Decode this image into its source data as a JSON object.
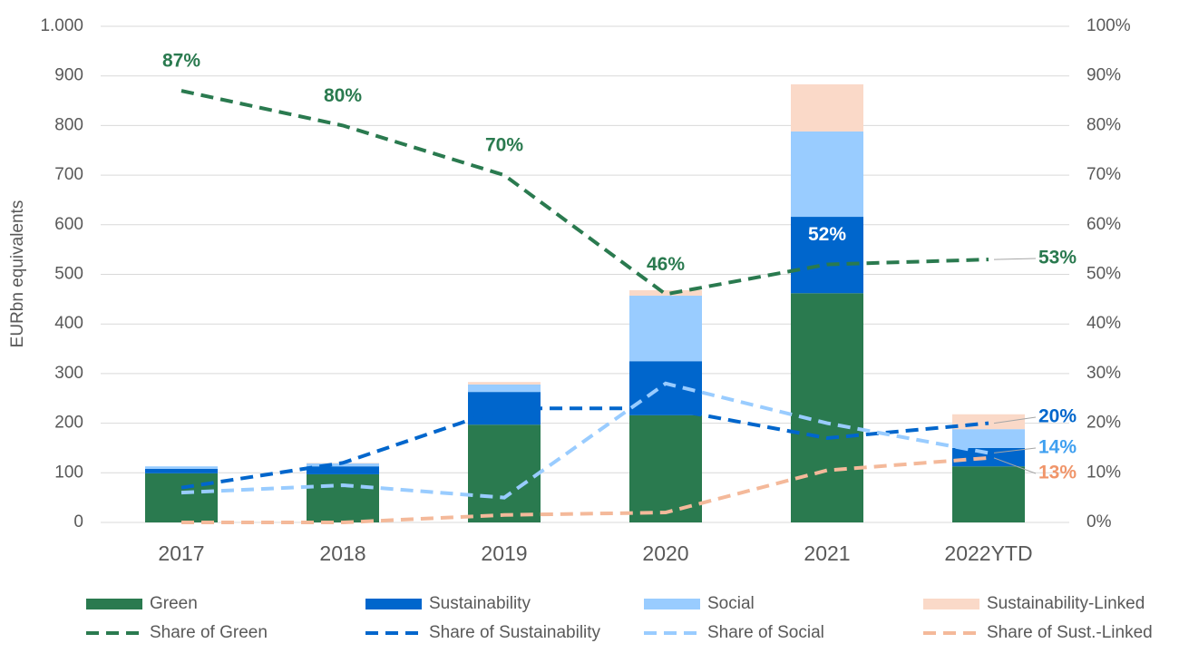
{
  "chart_data": {
    "type": "bar",
    "y_label": "EURbn equivalents",
    "categories": [
      "2017",
      "2018",
      "2019",
      "2020",
      "2021",
      "2022YTD"
    ],
    "ylim": [
      0,
      1000
    ],
    "yticks": [
      0,
      100,
      200,
      300,
      400,
      500,
      600,
      700,
      800,
      900,
      {
        "value": 1000,
        "label": "1.000"
      }
    ],
    "y2lim": [
      0,
      100
    ],
    "y2ticks": [
      {
        "value": 0,
        "label": "0%"
      },
      {
        "value": 10,
        "label": "10%"
      },
      {
        "value": 20,
        "label": "20%"
      },
      {
        "value": 30,
        "label": "30%"
      },
      {
        "value": 40,
        "label": "40%"
      },
      {
        "value": 50,
        "label": "50%"
      },
      {
        "value": 60,
        "label": "60%"
      },
      {
        "value": 70,
        "label": "70%"
      },
      {
        "value": 80,
        "label": "80%"
      },
      {
        "value": 90,
        "label": "90%"
      },
      {
        "value": 100,
        "label": "100%"
      }
    ],
    "grid": true,
    "stacked": true,
    "series": [
      {
        "name": "Green",
        "type": "bar",
        "color": "#2a7a4f",
        "values": [
          99,
          97,
          197,
          216,
          462,
          113
        ]
      },
      {
        "name": "Sustainability",
        "type": "bar",
        "color": "#0066cc",
        "values": [
          9,
          16,
          66,
          109,
          154,
          37
        ]
      },
      {
        "name": "Social",
        "type": "bar",
        "color": "#99ccff",
        "values": [
          5,
          6,
          15,
          132,
          172,
          38
        ]
      },
      {
        "name": "Sustainability-Linked",
        "type": "bar",
        "color": "#fad9c8",
        "values": [
          0,
          1,
          5,
          11,
          95,
          30
        ]
      },
      {
        "name": "Share of Green",
        "type": "line",
        "axis": "y2",
        "color": "#2a7a4f",
        "label_color": "#2a7a4f",
        "values": [
          87,
          80,
          70,
          46,
          52,
          53
        ],
        "value_labels": [
          "87%",
          "80%",
          "70%",
          "46%",
          "52%",
          "53%"
        ]
      },
      {
        "name": "Share of Sustainability",
        "type": "line",
        "axis": "y2",
        "color": "#0066cc",
        "label_color": "#0066cc",
        "values": [
          7,
          12,
          23,
          23,
          17,
          20
        ],
        "value_labels": [
          null,
          null,
          null,
          null,
          null,
          "20%"
        ]
      },
      {
        "name": "Share of Social",
        "type": "line",
        "axis": "y2",
        "color": "#99ccff",
        "label_color": "#3fa0f0",
        "values": [
          6,
          7.5,
          5,
          28,
          20,
          14
        ],
        "value_labels": [
          null,
          null,
          null,
          null,
          null,
          "14%"
        ]
      },
      {
        "name": "Share of Sust.-Linked",
        "type": "line",
        "axis": "y2",
        "color": "#f4b99a",
        "label_color": "#f0956a",
        "values": [
          0,
          0,
          1.5,
          2,
          10.5,
          13
        ],
        "value_labels": [
          null,
          null,
          null,
          null,
          null,
          "13%"
        ]
      }
    ]
  }
}
